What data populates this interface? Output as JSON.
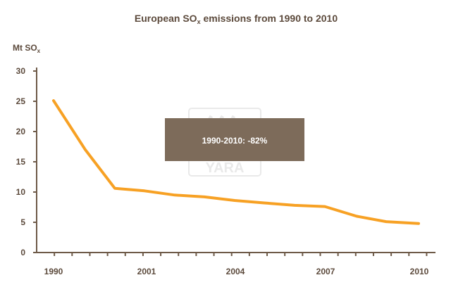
{
  "chart_data": {
    "type": "line",
    "title": "European SO",
    "title_sub": "x",
    "title_rest": " emissions from 1990 to 2010",
    "ylabel": "Mt SO",
    "ylabel_sub": "x",
    "xlabel": "",
    "ylim": [
      0,
      30
    ],
    "xlim": [
      1988.5,
      2011
    ],
    "yticks": [
      0,
      5,
      10,
      15,
      20,
      25,
      30
    ],
    "xtick_labels": [
      "1990",
      "2001",
      "2004",
      "2007",
      "2010"
    ],
    "grid": false,
    "legend": "none",
    "series": [
      {
        "color": "#f7a124",
        "points": [
          {
            "x": 1989.0,
            "y": 25.1
          },
          {
            "x": 1990.0,
            "y": 17.0
          },
          {
            "x": 1991.0,
            "y": 10.6
          },
          {
            "x": 1992.0,
            "y": 10.2
          },
          {
            "x": 1993.0,
            "y": 9.5
          },
          {
            "x": 1994.0,
            "y": 9.2
          },
          {
            "x": 1995.0,
            "y": 8.6
          },
          {
            "x": 1996.0,
            "y": 8.2
          },
          {
            "x": 1997.0,
            "y": 7.8
          },
          {
            "x": 1997.6,
            "y": 7.6
          },
          {
            "x": 1998.5,
            "y": 6.0
          },
          {
            "x": 1999.6,
            "y": 5.1
          },
          {
            "x": 2010.6,
            "y": 4.8
          }
        ]
      }
    ],
    "annotation": "1990-2010:  -82%",
    "watermark": "YARA",
    "colors": {
      "line": "#f7a124",
      "axis": "#6e5a48",
      "text": "#5c4a3c",
      "annotation_bg": "#7d6b5a",
      "annotation_text": "#ffffff"
    }
  }
}
